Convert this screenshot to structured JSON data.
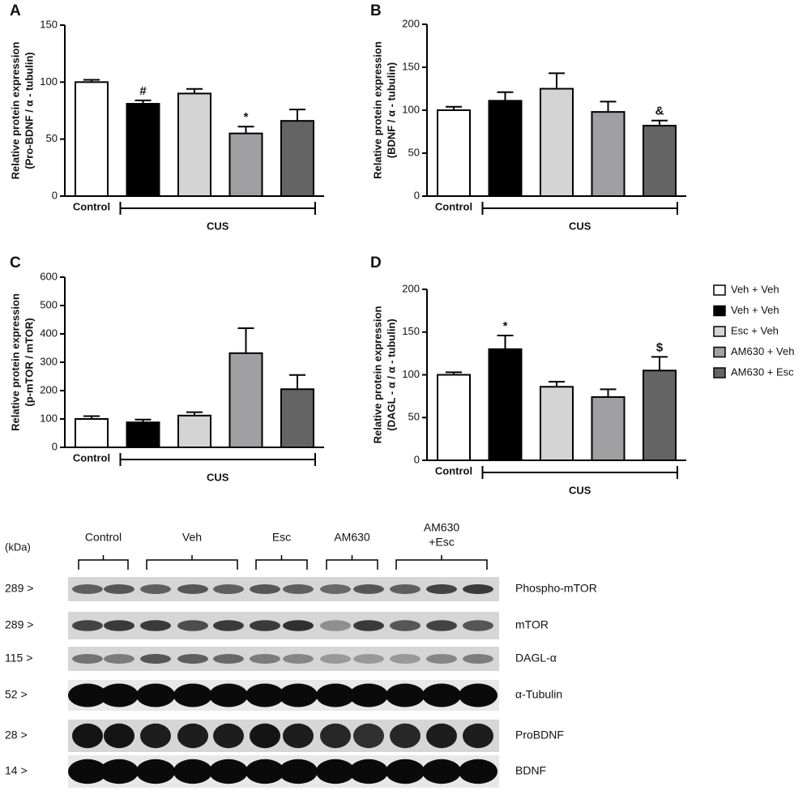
{
  "chart_data": [
    {
      "type": "bar",
      "panel": "A",
      "ylabel": [
        "Relative protein expression",
        "(Pro-BDNF / α - tubulin)"
      ],
      "values": [
        100,
        81,
        90,
        55,
        66
      ],
      "errors": [
        2,
        3,
        4,
        6,
        10
      ],
      "colors": [
        "#ffffff",
        "#000000",
        "#d4d4d4",
        "#a0a0a2",
        "#646464"
      ],
      "annotations": [
        null,
        "#",
        null,
        "*",
        null
      ],
      "groups": [
        "Control",
        "CUS"
      ],
      "ylim": [
        0,
        150
      ],
      "yticks": [
        0,
        50,
        100,
        150
      ]
    },
    {
      "type": "bar",
      "panel": "B",
      "ylabel": [
        "Relative protein expression",
        "(BDNF / α - tubulin)"
      ],
      "values": [
        100,
        111,
        125,
        98,
        82
      ],
      "errors": [
        4,
        10,
        18,
        12,
        6
      ],
      "colors": [
        "#ffffff",
        "#000000",
        "#d4d4d4",
        "#a0a0a2",
        "#646464"
      ],
      "annotations": [
        null,
        null,
        null,
        null,
        "&"
      ],
      "groups": [
        "Control",
        "CUS"
      ],
      "ylim": [
        0,
        200
      ],
      "yticks": [
        0,
        50,
        100,
        150,
        200
      ]
    },
    {
      "type": "bar",
      "panel": "C",
      "ylabel": [
        "Relative protein expression",
        "(p-mTOR / mTOR)"
      ],
      "values": [
        100,
        88,
        112,
        332,
        205
      ],
      "errors": [
        10,
        10,
        12,
        88,
        50
      ],
      "colors": [
        "#ffffff",
        "#000000",
        "#d4d4d4",
        "#a0a0a2",
        "#646464"
      ],
      "annotations": [
        null,
        null,
        null,
        null,
        null
      ],
      "groups": [
        "Control",
        "CUS"
      ],
      "ylim": [
        0,
        600
      ],
      "yticks": [
        0,
        100,
        200,
        300,
        400,
        500,
        600
      ]
    },
    {
      "type": "bar",
      "panel": "D",
      "ylabel": [
        "Relative protein expression",
        "(DAGL - α  / α - tubulin)"
      ],
      "values": [
        100,
        130,
        86,
        74,
        105
      ],
      "errors": [
        3,
        16,
        6,
        9,
        16
      ],
      "colors": [
        "#ffffff",
        "#000000",
        "#d4d4d4",
        "#a0a0a2",
        "#646464"
      ],
      "annotations": [
        null,
        "*",
        null,
        null,
        "$"
      ],
      "groups": [
        "Control",
        "CUS"
      ],
      "ylim": [
        0,
        200
      ],
      "yticks": [
        0,
        50,
        100,
        150,
        200
      ]
    }
  ],
  "legend": [
    {
      "name": "Veh + Veh",
      "color": "#ffffff"
    },
    {
      "name": "Veh + Veh",
      "color": "#000000"
    },
    {
      "name": "Esc + Veh",
      "color": "#d4d4d4"
    },
    {
      "name": "AM630 + Veh",
      "color": "#a0a0a2"
    },
    {
      "name": "AM630 + Esc",
      "color": "#646464"
    }
  ],
  "blot": {
    "kda_label": "(kDa)",
    "groups": [
      [
        "Control"
      ],
      [
        "Veh"
      ],
      [
        "Esc"
      ],
      [
        "AM630"
      ],
      [
        "AM630",
        "+Esc"
      ]
    ],
    "rows": [
      {
        "kda": "289 >",
        "name": "Phospho-mTOR"
      },
      {
        "kda": "289 >",
        "name": "mTOR"
      },
      {
        "kda": "115 >",
        "name": "DAGL-α"
      },
      {
        "kda": "52 >",
        "name": "α-Tubulin"
      },
      {
        "kda": "28 >",
        "name": "ProBDNF"
      },
      {
        "kda": "14 >",
        "name": "BDNF"
      }
    ]
  }
}
